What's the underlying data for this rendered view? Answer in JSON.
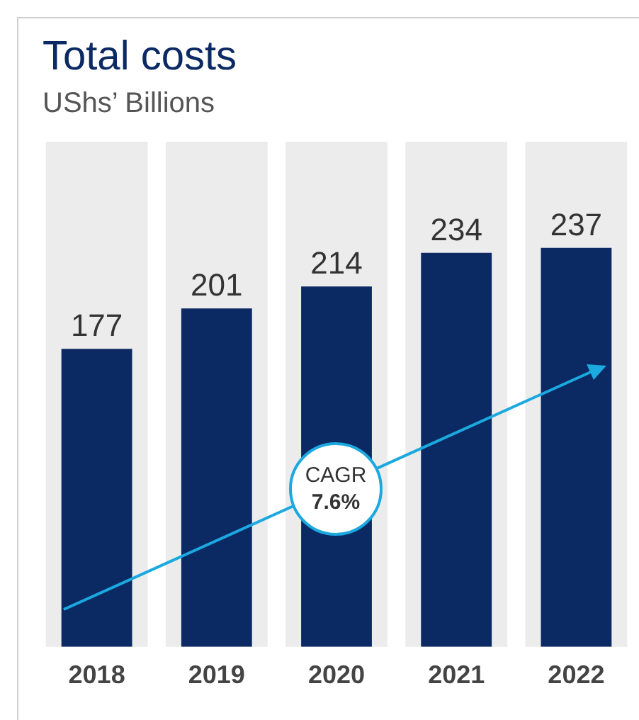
{
  "chart_data": {
    "type": "bar",
    "title": "Total costs",
    "subtitle": "UShs’ Billions",
    "categories": [
      "2018",
      "2019",
      "2020",
      "2021",
      "2022"
    ],
    "values": [
      177,
      201,
      214,
      234,
      237
    ],
    "color": "#0b2a63",
    "data_labels": true,
    "grid": false,
    "legend": false,
    "annotations": [
      "CAGR",
      "7.6%"
    ],
    "bands": [
      {
        "axis": "x",
        "from": "2018",
        "to": "2018",
        "color": "#ececec"
      },
      {
        "axis": "x",
        "from": "2019",
        "to": "2019",
        "color": "#ececec"
      },
      {
        "axis": "x",
        "from": "2020",
        "to": "2020",
        "color": "#ececec"
      },
      {
        "axis": "x",
        "from": "2021",
        "to": "2021",
        "color": "#ececec"
      },
      {
        "axis": "x",
        "from": "2022",
        "to": "2022",
        "color": "#ececec"
      }
    ]
  }
}
